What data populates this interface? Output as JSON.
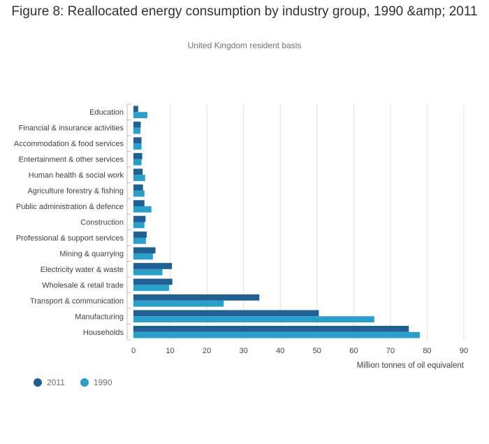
{
  "title": "Figure 8: Reallocated energy consumption by industry group, 1990 &amp; 2011",
  "subtitle": "United Kingdom resident basis",
  "colors": {
    "2011": "#206095",
    "1990": "#27a0cc",
    "grid": "#e0e0e0",
    "axis": "#bebebe"
  },
  "chart_data": {
    "type": "bar",
    "orientation": "horizontal",
    "title": "Figure 8: Reallocated energy consumption by industry group, 1990 &amp; 2011",
    "subtitle": "United Kingdom resident basis",
    "xlabel": "Million tonnes of oil equivalent",
    "ylabel": "",
    "xlim": [
      0,
      90
    ],
    "xticks": [
      0,
      10,
      20,
      30,
      40,
      50,
      60,
      70,
      80,
      90
    ],
    "grid": true,
    "legend_position": "bottom-left",
    "categories": [
      "Education",
      "Financial & insurance activities",
      "Accommodation & food services",
      "Entertainment & other services",
      "Human health & social work",
      "Agriculture forestry & fishing",
      "Public administration & defence",
      "Construction",
      "Professional & support services",
      "Mining & quarrying",
      "Electricity water & waste",
      "Wholesale & retail trade",
      "Transport & communication",
      "Manufacturing",
      "Households"
    ],
    "series": [
      {
        "name": "2011",
        "values": [
          1.3,
          2.0,
          2.2,
          2.4,
          2.5,
          2.6,
          3.0,
          3.3,
          3.6,
          6.0,
          10.5,
          10.6,
          34.3,
          50.5,
          75.0
        ]
      },
      {
        "name": "1990",
        "values": [
          3.8,
          1.9,
          2.2,
          2.2,
          3.2,
          3.0,
          4.9,
          3.0,
          3.4,
          5.3,
          7.9,
          9.7,
          24.6,
          65.6,
          78.0
        ]
      }
    ]
  }
}
